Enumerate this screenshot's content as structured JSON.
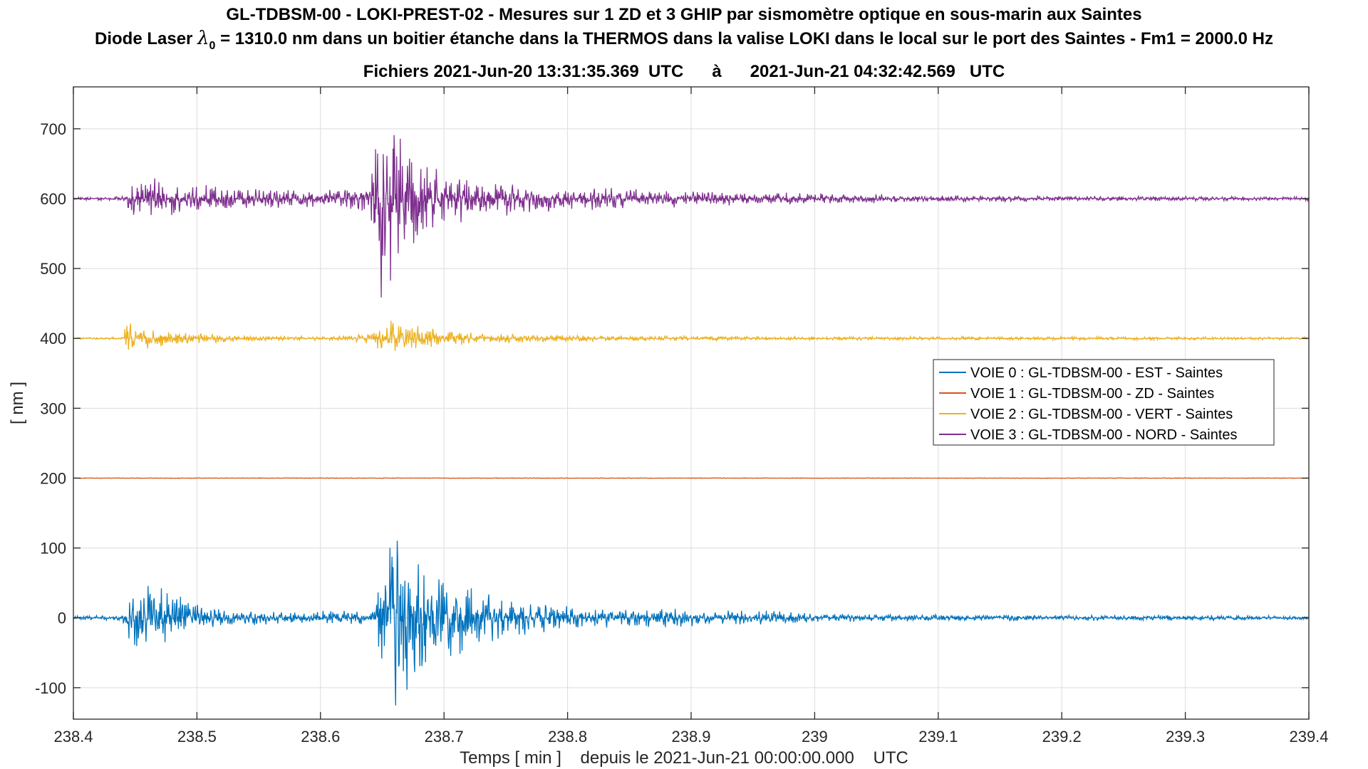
{
  "chart_data": {
    "type": "line",
    "title_line1": "GL-TDBSM-00 - LOKI-PREST-02 - Mesures sur 1 ZD et 3 GHIP par sismomètre optique en sous-marin aux Saintes",
    "title_line2_prefix": "Diode Laser ",
    "title_line2_symbol": "λ",
    "title_line2_subscript": "0",
    "title_line2_suffix": " = 1310.0 nm dans un boitier étanche dans la THERMOS dans la valise LOKI dans le local sur le port des Saintes - Fm1 = 2000.0 Hz",
    "title_line3": "Fichiers 2021-Jun-20 13:31:35.369  UTC      à      2021-Jun-21 04:32:42.569   UTC",
    "xlabel": "Temps [ min ]    depuis le 2021-Jun-21 00:00:00.000    UTC",
    "ylabel": "[ nm ]",
    "xlim": [
      238.4,
      239.4
    ],
    "ylim": [
      -145,
      760
    ],
    "grid": true,
    "legend_position": "right",
    "x_ticks": [
      "238.4",
      "238.5",
      "238.6",
      "238.7",
      "238.8",
      "238.9",
      "239",
      "239.1",
      "239.2",
      "239.3",
      "239.4"
    ],
    "y_ticks": [
      "-100",
      "0",
      "100",
      "200",
      "300",
      "400",
      "500",
      "600",
      "700"
    ],
    "series": [
      {
        "name": "VOIE 0 : GL-TDBSM-00 - EST - Saintes",
        "color": "#0072BD",
        "offset": 0,
        "envelope_x": [
          238.4,
          238.44,
          238.445,
          238.45,
          238.47,
          238.49,
          238.52,
          238.6,
          238.645,
          238.65,
          238.66,
          238.67,
          238.69,
          238.71,
          238.75,
          238.8,
          238.85,
          238.89,
          238.91,
          238.95,
          238.97,
          239.0,
          239.1,
          239.2,
          239.3,
          239.4
        ],
        "envelope_amp": [
          3,
          4,
          55,
          50,
          45,
          28,
          12,
          10,
          14,
          125,
          150,
          110,
          80,
          55,
          30,
          18,
          12,
          16,
          10,
          12,
          10,
          6,
          5,
          4,
          4,
          3
        ]
      },
      {
        "name": "VOIE 1 : GL-TDBSM-00 - ZD - Saintes",
        "color": "#D95319",
        "offset": 200,
        "envelope_x": [
          238.4,
          239.4
        ],
        "envelope_amp": [
          0.5,
          0.5
        ]
      },
      {
        "name": "VOIE 2 : GL-TDBSM-00 - VERT - Saintes",
        "color": "#EDB120",
        "offset": 400,
        "envelope_x": [
          238.4,
          238.44,
          238.442,
          238.45,
          238.47,
          238.5,
          238.55,
          238.6,
          238.64,
          238.655,
          238.665,
          238.69,
          238.72,
          238.78,
          238.85,
          238.95,
          239.1,
          239.2,
          239.4
        ],
        "envelope_amp": [
          1.5,
          2,
          30,
          18,
          12,
          8,
          4,
          3,
          8,
          28,
          25,
          15,
          9,
          6,
          4,
          3,
          3,
          2.5,
          2
        ]
      },
      {
        "name": "VOIE 3 : GL-TDBSM-00 - NORD - Saintes",
        "color": "#7E2F8E",
        "offset": 600,
        "envelope_x": [
          238.4,
          238.44,
          238.445,
          238.46,
          238.49,
          238.52,
          238.55,
          238.6,
          238.64,
          238.648,
          238.66,
          238.67,
          238.7,
          238.75,
          238.8,
          238.9,
          239.0,
          239.1,
          239.2,
          239.4
        ],
        "envelope_amp": [
          2,
          4,
          25,
          32,
          22,
          18,
          15,
          12,
          18,
          150,
          140,
          75,
          38,
          25,
          18,
          12,
          8,
          5,
          4,
          3
        ]
      }
    ]
  }
}
